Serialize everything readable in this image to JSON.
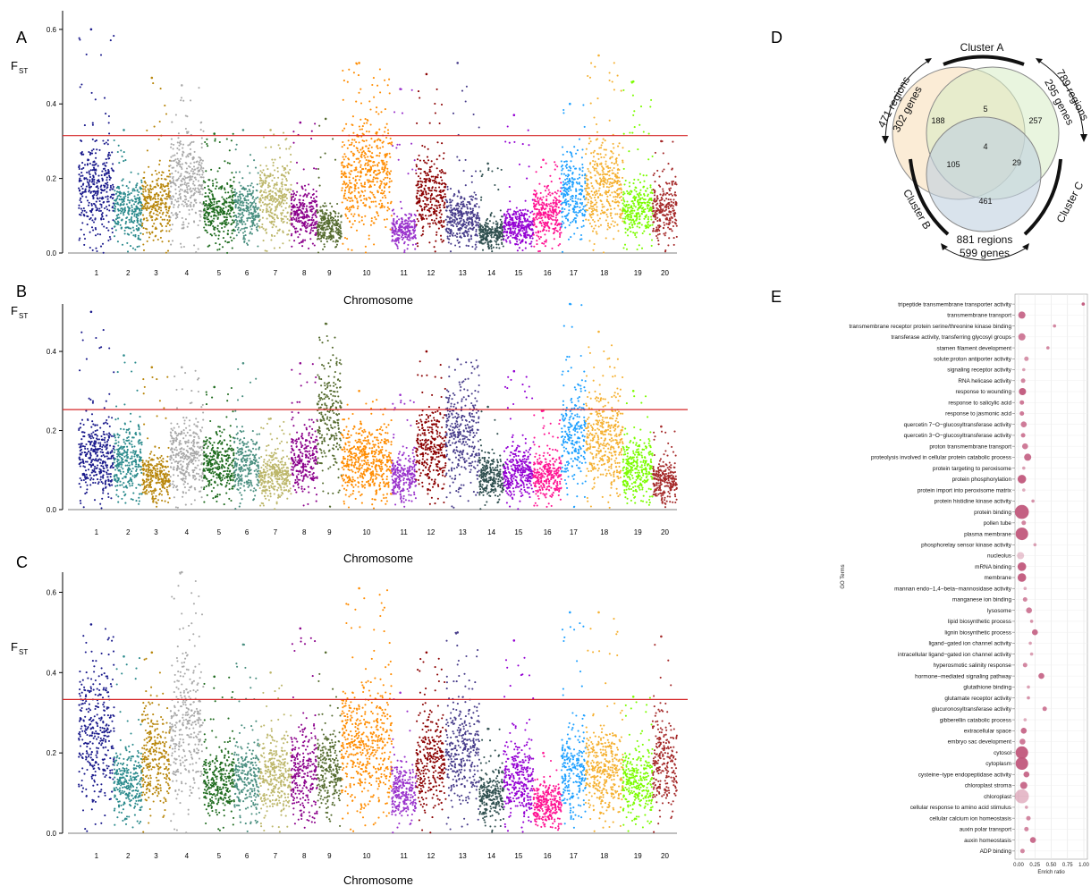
{
  "colors": {
    "threshold": "#d62728",
    "chromosomes": [
      "#1a1a8c",
      "#2a8a8c",
      "#b8860b",
      "#a9a9a9",
      "#1e6b1e",
      "#4a8f80",
      "#bdb76b",
      "#8b008b",
      "#556b2f",
      "#ff8c00",
      "#9932cc",
      "#8b0000",
      "#483d8b",
      "#2f4f4f",
      "#9400d3",
      "#ff1493",
      "#1ea0ff",
      "#f5b030",
      "#7cfc00",
      "#a52a2a"
    ],
    "go_dot": "#c0557a"
  },
  "manhattan": {
    "ylabel": "F",
    "ylabel_sub": "ST",
    "xlabel": "Chromosome",
    "yticks": [
      "0.0",
      "0.2",
      "0.4",
      "0.6"
    ],
    "chromosomes": [
      "1",
      "2",
      "3",
      "4",
      "5",
      "6",
      "7",
      "8",
      "9",
      "10",
      "11",
      "12",
      "13",
      "14",
      "15",
      "16",
      "17",
      "18",
      "19",
      "20"
    ]
  },
  "panels": {
    "a": "A",
    "b": "B",
    "c": "C",
    "d": "D",
    "e": "E"
  },
  "venn": {
    "cluster_a": "Cluster A",
    "cluster_b": "Cluster B",
    "cluster_c": "Cluster C",
    "ab_text_1": "471 regions",
    "ab_text_2": "302 genes",
    "ac_text_1": "789 regions",
    "ac_text_2": "295 genes",
    "bc_text_1": "881 regions",
    "bc_text_2": "599 genes",
    "n_a_only": "188",
    "n_c_only": "257",
    "n_b_only": "461",
    "n_ac": "5",
    "n_ab": "105",
    "n_bc": "29",
    "n_abc": "4"
  },
  "go": {
    "ylabel": "GO Terms",
    "xlabel": "Enrich ratio",
    "xticks": [
      "0.00",
      "0.25",
      "0.50",
      "0.75",
      "1.00"
    ]
  },
  "chart_data": [
    {
      "type": "scatter",
      "panel": "A",
      "xlabel": "Chromosome",
      "ylabel": "FST",
      "ylim": [
        0,
        0.65
      ],
      "threshold": 0.315,
      "chromosomes": [
        "1",
        "2",
        "3",
        "4",
        "5",
        "6",
        "7",
        "8",
        "9",
        "10",
        "11",
        "12",
        "13",
        "14",
        "15",
        "16",
        "17",
        "18",
        "19",
        "20"
      ],
      "chromosome_mean": [
        0.17,
        0.11,
        0.13,
        0.18,
        0.11,
        0.11,
        0.14,
        0.1,
        0.07,
        0.2,
        0.06,
        0.15,
        0.09,
        0.05,
        0.07,
        0.1,
        0.15,
        0.17,
        0.11,
        0.11
      ],
      "chromosome_peak": [
        0.6,
        0.33,
        0.47,
        0.45,
        0.32,
        0.33,
        0.33,
        0.35,
        0.36,
        0.51,
        0.44,
        0.48,
        0.51,
        0.24,
        0.37,
        0.25,
        0.4,
        0.53,
        0.46,
        0.3
      ]
    },
    {
      "type": "scatter",
      "panel": "B",
      "xlabel": "Chromosome",
      "ylabel": "FST",
      "ylim": [
        0,
        0.52
      ],
      "threshold": 0.253,
      "chromosomes": [
        "1",
        "2",
        "3",
        "4",
        "5",
        "6",
        "7",
        "8",
        "9",
        "10",
        "11",
        "12",
        "13",
        "14",
        "15",
        "16",
        "17",
        "18",
        "19",
        "20"
      ],
      "chromosome_mean": [
        0.13,
        0.12,
        0.08,
        0.13,
        0.11,
        0.11,
        0.08,
        0.12,
        0.22,
        0.12,
        0.08,
        0.15,
        0.18,
        0.08,
        0.09,
        0.08,
        0.18,
        0.17,
        0.1,
        0.07
      ],
      "chromosome_peak": [
        0.5,
        0.39,
        0.36,
        0.36,
        0.31,
        0.37,
        0.23,
        0.37,
        0.47,
        0.3,
        0.29,
        0.4,
        0.38,
        0.26,
        0.35,
        0.25,
        0.52,
        0.45,
        0.3,
        0.21
      ]
    },
    {
      "type": "scatter",
      "panel": "C",
      "xlabel": "Chromosome",
      "ylabel": "FST",
      "ylim": [
        0,
        0.65
      ],
      "threshold": 0.333,
      "chromosomes": [
        "1",
        "2",
        "3",
        "4",
        "5",
        "6",
        "7",
        "8",
        "9",
        "10",
        "11",
        "12",
        "13",
        "14",
        "15",
        "16",
        "17",
        "18",
        "19",
        "20"
      ],
      "chromosome_mean": [
        0.24,
        0.12,
        0.18,
        0.25,
        0.12,
        0.13,
        0.14,
        0.15,
        0.15,
        0.21,
        0.1,
        0.17,
        0.19,
        0.09,
        0.13,
        0.07,
        0.15,
        0.15,
        0.12,
        0.17
      ],
      "chromosome_peak": [
        0.52,
        0.44,
        0.45,
        0.65,
        0.39,
        0.47,
        0.4,
        0.51,
        0.45,
        0.61,
        0.35,
        0.45,
        0.5,
        0.26,
        0.48,
        0.2,
        0.55,
        0.55,
        0.34,
        0.49
      ]
    },
    {
      "type": "scatter",
      "panel": "E",
      "xlabel": "Enrich ratio",
      "ylabel": "GO Terms",
      "xlim": [
        0,
        1.0
      ],
      "terms": [
        "tripeptide transmembrane transporter activity",
        "transmembrane transport",
        "transmembrane receptor protein serine/threonine kinase binding",
        "transferase activity, transferring glycosyl groups",
        "stamen filament development",
        "solute:proton antiporter activity",
        "signaling receptor activity",
        "RNA helicase activity",
        "response to wounding",
        "response to salicylic acid",
        "response to jasmonic acid",
        "quercetin 7−O−glucosyltransferase activity",
        "quercetin 3−O−glucosyltransferase activity",
        "proton transmembrane transport",
        "proteolysis involved in cellular protein catabolic process",
        "protein targeting to peroxisome",
        "protein phosphorylation",
        "protein import into peroxisome matrix",
        "protein histidine kinase activity",
        "protein binding",
        "pollen tube",
        "plasma membrane",
        "phosphorelay sensor kinase activity",
        "nucleolus",
        "mRNA binding",
        "membrane",
        "mannan endo−1,4−beta−mannosidase activity",
        "manganese ion binding",
        "lysosome",
        "lipid biosynthetic process",
        "lignin biosynthetic process",
        "ligand−gated ion channel activity",
        "intracellular ligand−gated ion channel activity",
        "hyperosmotic salinity response",
        "hormone−mediated signaling pathway",
        "glutathione binding",
        "glutamate receptor activity",
        "glucuronosyltransferase activity",
        "gibberellin catabolic process",
        "extracellular space",
        "embryo sac development",
        "cytosol",
        "cytoplasm",
        "cysteine−type endopeptidase activity",
        "chloroplast stroma",
        "chloroplast",
        "cellular response to amino acid stimulus",
        "cellular calcium ion homeostasis",
        "auxin polar transport",
        "auxin homeostasis",
        "ADP binding"
      ],
      "enrich_ratio": [
        0.99,
        0.05,
        0.55,
        0.05,
        0.45,
        0.12,
        0.08,
        0.07,
        0.06,
        0.05,
        0.05,
        0.08,
        0.07,
        0.1,
        0.14,
        0.08,
        0.05,
        0.08,
        0.22,
        0.05,
        0.08,
        0.05,
        0.25,
        0.03,
        0.05,
        0.05,
        0.1,
        0.1,
        0.16,
        0.2,
        0.25,
        0.18,
        0.2,
        0.1,
        0.35,
        0.15,
        0.15,
        0.4,
        0.1,
        0.08,
        0.06,
        0.05,
        0.05,
        0.12,
        0.08,
        0.05,
        0.12,
        0.15,
        0.12,
        0.22,
        0.06
      ],
      "gene_count_relative": [
        1,
        4,
        1,
        4,
        1,
        2,
        1,
        2,
        4,
        2,
        2,
        3,
        2,
        3,
        4,
        1,
        5,
        1,
        1,
        9,
        2,
        8,
        1,
        4,
        5,
        5,
        1,
        2,
        3,
        1,
        3,
        1,
        1,
        2,
        3,
        1,
        1,
        2,
        1,
        3,
        3,
        8,
        8,
        3,
        4,
        9,
        1,
        2,
        2,
        3,
        2
      ],
      "significance": [
        0.9,
        0.8,
        0.6,
        0.7,
        0.6,
        0.5,
        0.4,
        0.6,
        0.9,
        0.7,
        0.7,
        0.7,
        0.7,
        0.7,
        0.8,
        0.4,
        0.9,
        0.3,
        0.5,
        0.9,
        0.6,
        0.9,
        0.4,
        0.1,
        0.9,
        0.9,
        0.3,
        0.6,
        0.7,
        0.5,
        0.8,
        0.4,
        0.4,
        0.6,
        0.8,
        0.4,
        0.5,
        0.7,
        0.3,
        0.8,
        0.7,
        0.9,
        0.9,
        0.8,
        0.8,
        0.2,
        0.4,
        0.6,
        0.6,
        0.8,
        0.6
      ]
    }
  ]
}
